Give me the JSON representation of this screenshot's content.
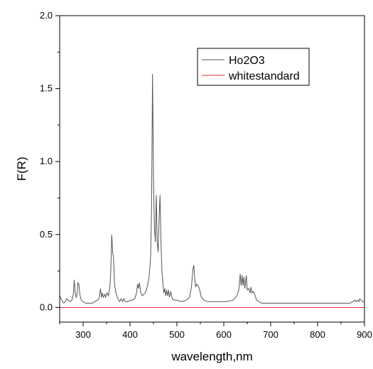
{
  "chart_data": {
    "type": "line",
    "xlabel": "wavelength,nm",
    "ylabel": "F(R)",
    "xlim": [
      250,
      900
    ],
    "ylim": [
      -0.1,
      2.0
    ],
    "xticks": [
      300,
      400,
      500,
      600,
      700,
      800,
      900
    ],
    "xtick_labels": [
      "300",
      "400",
      "500",
      "600",
      "700",
      "800",
      "900"
    ],
    "yticks": [
      0.0,
      0.5,
      1.0,
      1.5,
      2.0
    ],
    "ytick_labels": [
      "0.0",
      "0.5",
      "1.0",
      "1.5",
      "2.0"
    ],
    "grid": false,
    "legend_position": "top-right",
    "series": [
      {
        "name": "Ho2O3",
        "color": "#555555",
        "points": [
          [
            250,
            0.08
          ],
          [
            253,
            0.06
          ],
          [
            256,
            0.04
          ],
          [
            259,
            0.03
          ],
          [
            262,
            0.04
          ],
          [
            265,
            0.06
          ],
          [
            268,
            0.05
          ],
          [
            272,
            0.04
          ],
          [
            276,
            0.05
          ],
          [
            279,
            0.09
          ],
          [
            281,
            0.19
          ],
          [
            283,
            0.1
          ],
          [
            285,
            0.07
          ],
          [
            287,
            0.09
          ],
          [
            289,
            0.17
          ],
          [
            291,
            0.16
          ],
          [
            293,
            0.09
          ],
          [
            296,
            0.05
          ],
          [
            300,
            0.04
          ],
          [
            305,
            0.03
          ],
          [
            310,
            0.03
          ],
          [
            315,
            0.03
          ],
          [
            320,
            0.03
          ],
          [
            325,
            0.04
          ],
          [
            330,
            0.05
          ],
          [
            334,
            0.06
          ],
          [
            337,
            0.13
          ],
          [
            339,
            0.07
          ],
          [
            341,
            0.1
          ],
          [
            343,
            0.07
          ],
          [
            346,
            0.09
          ],
          [
            348,
            0.07
          ],
          [
            351,
            0.1
          ],
          [
            354,
            0.08
          ],
          [
            357,
            0.14
          ],
          [
            359,
            0.25
          ],
          [
            361,
            0.5
          ],
          [
            363,
            0.38
          ],
          [
            365,
            0.33
          ],
          [
            367,
            0.16
          ],
          [
            370,
            0.1
          ],
          [
            374,
            0.06
          ],
          [
            378,
            0.04
          ],
          [
            381,
            0.06
          ],
          [
            384,
            0.04
          ],
          [
            387,
            0.06
          ],
          [
            390,
            0.04
          ],
          [
            395,
            0.04
          ],
          [
            400,
            0.05
          ],
          [
            405,
            0.05
          ],
          [
            410,
            0.06
          ],
          [
            414,
            0.1
          ],
          [
            416,
            0.16
          ],
          [
            418,
            0.13
          ],
          [
            420,
            0.17
          ],
          [
            423,
            0.1
          ],
          [
            426,
            0.08
          ],
          [
            429,
            0.09
          ],
          [
            432,
            0.1
          ],
          [
            435,
            0.12
          ],
          [
            438,
            0.16
          ],
          [
            441,
            0.22
          ],
          [
            444,
            0.35
          ],
          [
            446,
            0.7
          ],
          [
            448,
            1.6
          ],
          [
            450,
            0.9
          ],
          [
            452,
            0.55
          ],
          [
            454,
            0.45
          ],
          [
            456,
            0.77
          ],
          [
            458,
            0.45
          ],
          [
            460,
            0.38
          ],
          [
            462,
            0.6
          ],
          [
            464,
            0.77
          ],
          [
            466,
            0.45
          ],
          [
            468,
            0.25
          ],
          [
            470,
            0.17
          ],
          [
            472,
            0.1
          ],
          [
            474,
            0.13
          ],
          [
            476,
            0.08
          ],
          [
            478,
            0.12
          ],
          [
            480,
            0.08
          ],
          [
            482,
            0.12
          ],
          [
            484,
            0.07
          ],
          [
            487,
            0.11
          ],
          [
            490,
            0.06
          ],
          [
            495,
            0.05
          ],
          [
            500,
            0.05
          ],
          [
            510,
            0.04
          ],
          [
            520,
            0.05
          ],
          [
            527,
            0.07
          ],
          [
            531,
            0.14
          ],
          [
            534,
            0.26
          ],
          [
            536,
            0.29
          ],
          [
            538,
            0.2
          ],
          [
            540,
            0.14
          ],
          [
            542,
            0.16
          ],
          [
            545,
            0.15
          ],
          [
            548,
            0.13
          ],
          [
            552,
            0.07
          ],
          [
            558,
            0.05
          ],
          [
            565,
            0.04
          ],
          [
            575,
            0.04
          ],
          [
            590,
            0.04
          ],
          [
            605,
            0.04
          ],
          [
            620,
            0.05
          ],
          [
            628,
            0.08
          ],
          [
            632,
            0.12
          ],
          [
            635,
            0.23
          ],
          [
            637,
            0.15
          ],
          [
            639,
            0.22
          ],
          [
            641,
            0.15
          ],
          [
            643,
            0.21
          ],
          [
            645,
            0.13
          ],
          [
            648,
            0.22
          ],
          [
            650,
            0.12
          ],
          [
            653,
            0.13
          ],
          [
            656,
            0.1
          ],
          [
            658,
            0.14
          ],
          [
            660,
            0.1
          ],
          [
            663,
            0.11
          ],
          [
            666,
            0.09
          ],
          [
            670,
            0.05
          ],
          [
            680,
            0.03
          ],
          [
            700,
            0.03
          ],
          [
            720,
            0.03
          ],
          [
            740,
            0.03
          ],
          [
            760,
            0.03
          ],
          [
            780,
            0.03
          ],
          [
            800,
            0.03
          ],
          [
            820,
            0.03
          ],
          [
            840,
            0.03
          ],
          [
            860,
            0.03
          ],
          [
            870,
            0.03
          ],
          [
            875,
            0.04
          ],
          [
            879,
            0.05
          ],
          [
            882,
            0.04
          ],
          [
            885,
            0.05
          ],
          [
            888,
            0.04
          ],
          [
            890,
            0.06
          ],
          [
            893,
            0.05
          ],
          [
            896,
            0.04
          ],
          [
            900,
            0.04
          ]
        ]
      },
      {
        "name": "whitestandard",
        "color": "#e8322f",
        "points": [
          [
            250,
            0.0
          ],
          [
            900,
            0.0
          ]
        ]
      }
    ]
  }
}
